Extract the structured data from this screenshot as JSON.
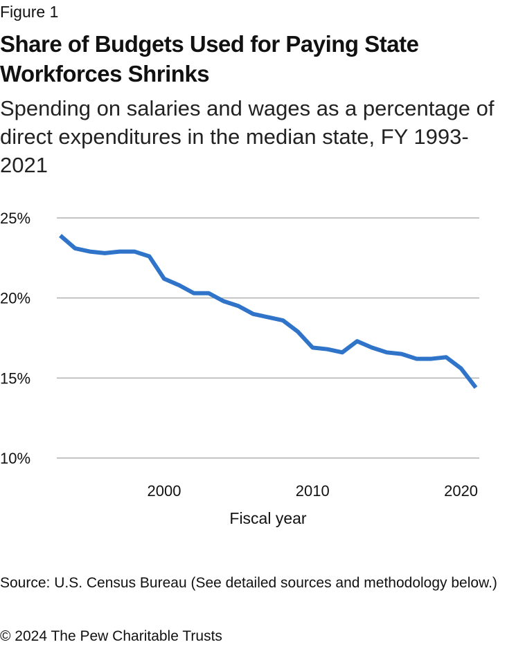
{
  "figure_label": "Figure 1",
  "title": "Share of Budgets Used for Paying State Workforces Shrinks",
  "subtitle": "Spending on salaries and wages as a percentage of direct expenditures in the median state, FY 1993-2021",
  "source": "Source: U.S. Census Bureau (See detailed sources and methodology below.)",
  "copyright": "© 2024 The Pew Charitable Trusts",
  "colors": {
    "line": "#2f74c9",
    "grid": "#b0b0b0"
  },
  "chart_data": {
    "type": "line",
    "xlabel": "Fiscal year",
    "ylabel": "",
    "x": [
      1993,
      1994,
      1995,
      1996,
      1997,
      1998,
      1999,
      2000,
      2001,
      2002,
      2003,
      2004,
      2005,
      2006,
      2007,
      2008,
      2009,
      2010,
      2011,
      2012,
      2013,
      2014,
      2015,
      2016,
      2017,
      2018,
      2019,
      2020,
      2021
    ],
    "series": [
      {
        "values": [
          23.9,
          23.1,
          22.9,
          22.8,
          22.9,
          22.9,
          22.6,
          21.2,
          20.8,
          20.3,
          20.3,
          19.8,
          19.5,
          19.0,
          18.8,
          18.6,
          17.9,
          16.9,
          16.8,
          16.6,
          17.3,
          16.9,
          16.6,
          16.5,
          16.2,
          16.2,
          16.3,
          15.6,
          14.4
        ]
      }
    ],
    "ylim": [
      10,
      25
    ],
    "yticks": [
      10,
      15,
      20,
      25
    ],
    "ytick_labels": [
      "10%",
      "15%",
      "20%",
      "25%"
    ],
    "xticks": [
      2000,
      2010,
      2020
    ],
    "xtick_labels": [
      "2000",
      "2010",
      "2020"
    ],
    "xlim": [
      1993,
      2021
    ],
    "grid": true,
    "legend": "none"
  }
}
